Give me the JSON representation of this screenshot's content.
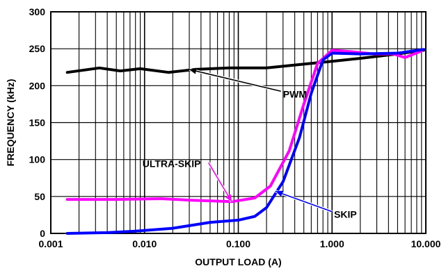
{
  "chart_data": {
    "type": "line",
    "xlabel": "OUTPUT LOAD (A)",
    "ylabel": "FREQUENCY (kHz)",
    "xscale": "log",
    "xlim": [
      0.001,
      10
    ],
    "ylim": [
      0,
      300
    ],
    "grid": true,
    "x_tick_labels": [
      "0.001",
      "0.010",
      "0.100",
      "1.000",
      "10.000"
    ],
    "y_tick_labels": [
      "0",
      "50",
      "100",
      "150",
      "200",
      "250",
      "300"
    ],
    "series": [
      {
        "name": "PWM",
        "color": "#000000",
        "points": [
          [
            0.0015,
            218
          ],
          [
            0.0033,
            224
          ],
          [
            0.0055,
            220
          ],
          [
            0.009,
            223
          ],
          [
            0.018,
            218
          ],
          [
            0.035,
            222
          ],
          [
            0.08,
            224
          ],
          [
            0.2,
            224
          ],
          [
            0.4,
            228
          ],
          [
            1.0,
            233
          ],
          [
            2.0,
            237
          ],
          [
            5.0,
            243
          ],
          [
            9.5,
            248
          ]
        ]
      },
      {
        "name": "ULTRA-SKIP",
        "color": "#ff00ff",
        "points": [
          [
            0.0015,
            46
          ],
          [
            0.005,
            46
          ],
          [
            0.015,
            47
          ],
          [
            0.03,
            45
          ],
          [
            0.085,
            43
          ],
          [
            0.15,
            48
          ],
          [
            0.22,
            64
          ],
          [
            0.35,
            112
          ],
          [
            0.5,
            175
          ],
          [
            0.7,
            230
          ],
          [
            1.0,
            248
          ],
          [
            1.6,
            246
          ],
          [
            2.8,
            243
          ],
          [
            4.5,
            243
          ],
          [
            6.0,
            238
          ],
          [
            9.0,
            247
          ]
        ]
      },
      {
        "name": "SKIP",
        "color": "#0000ff",
        "points": [
          [
            0.0015,
            0
          ],
          [
            0.004,
            1
          ],
          [
            0.008,
            3
          ],
          [
            0.02,
            7
          ],
          [
            0.05,
            15
          ],
          [
            0.1,
            18
          ],
          [
            0.15,
            23
          ],
          [
            0.2,
            35
          ],
          [
            0.3,
            70
          ],
          [
            0.45,
            130
          ],
          [
            0.6,
            190
          ],
          [
            0.8,
            235
          ],
          [
            1.0,
            244
          ],
          [
            2.0,
            243
          ],
          [
            5.0,
            244
          ],
          [
            9.5,
            249
          ]
        ]
      }
    ],
    "annotations": [
      {
        "text": "PWM",
        "series": "PWM",
        "target_x": 0.03,
        "target_y": 222,
        "text_x": 0.3,
        "text_y": 184
      },
      {
        "text": "ULTRA-SKIP",
        "series": "ULTRA-SKIP",
        "target_x": 0.085,
        "target_y": 43,
        "text_x": 0.0095,
        "text_y": 90
      },
      {
        "text": "SKIP",
        "series": "SKIP",
        "target_x": 0.25,
        "target_y": 57,
        "text_x": 1.05,
        "text_y": 21
      }
    ]
  }
}
